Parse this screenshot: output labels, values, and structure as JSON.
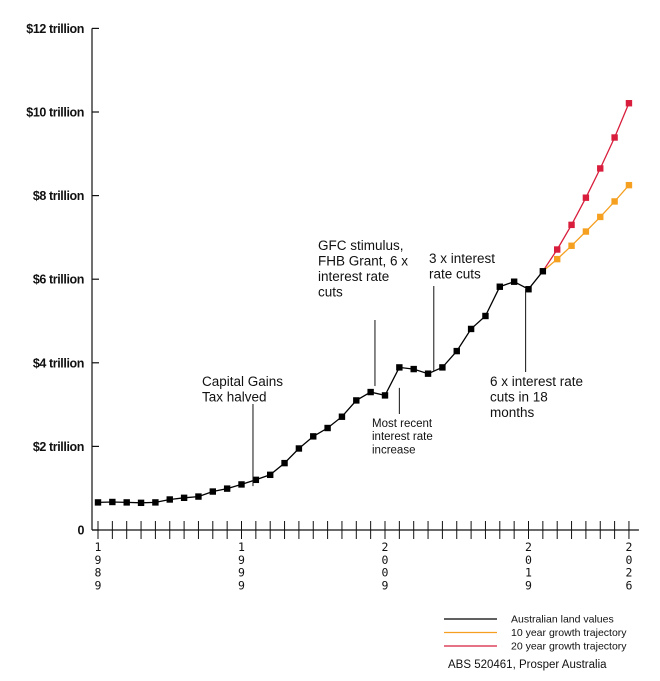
{
  "chart_data": {
    "type": "line",
    "title": "",
    "xlabel": "",
    "ylabel": "",
    "ylim": [
      0,
      12
    ],
    "y_ticks": [
      {
        "value": 0,
        "label": "0"
      },
      {
        "value": 2,
        "label": "$2 trillion"
      },
      {
        "value": 4,
        "label": "$4 trillion"
      },
      {
        "value": 6,
        "label": "$6 trillion"
      },
      {
        "value": 8,
        "label": "$8 trillion"
      },
      {
        "value": 10,
        "label": "$10 trillion"
      },
      {
        "value": 12,
        "label": "$12 trillion"
      }
    ],
    "x_range": [
      1989,
      2026
    ],
    "x_labels": [
      {
        "year": 1989,
        "label": "1989"
      },
      {
        "year": 1999,
        "label": "1999"
      },
      {
        "year": 2009,
        "label": "2009"
      },
      {
        "year": 2019,
        "label": "2019"
      },
      {
        "year": 2026,
        "label": "2026"
      }
    ],
    "grid": false,
    "legend_position": "bottom-right",
    "series": [
      {
        "name": "Australian land values",
        "color": "#000000",
        "x": [
          1989,
          1990,
          1991,
          1992,
          1993,
          1994,
          1995,
          1996,
          1997,
          1998,
          1999,
          2000,
          2001,
          2002,
          2003,
          2004,
          2005,
          2006,
          2007,
          2008,
          2009,
          2010,
          2011,
          2012,
          2013,
          2014,
          2015,
          2016,
          2017,
          2018,
          2019,
          2020
        ],
        "values": [
          0.66,
          0.67,
          0.66,
          0.65,
          0.66,
          0.73,
          0.77,
          0.8,
          0.92,
          0.99,
          1.09,
          1.2,
          1.32,
          1.6,
          1.95,
          2.24,
          2.44,
          2.71,
          3.1,
          3.3,
          3.22,
          3.89,
          3.85,
          3.74,
          3.89,
          4.28,
          4.81,
          5.12,
          5.82,
          5.94,
          5.76,
          6.19
        ]
      },
      {
        "name": "10 year growth trajectory",
        "color": "#f5a020",
        "x": [
          2020,
          2021,
          2022,
          2023,
          2024,
          2025,
          2026
        ],
        "values": [
          6.19,
          6.48,
          6.8,
          7.14,
          7.49,
          7.86,
          8.25
        ]
      },
      {
        "name": "20 year growth trajectory",
        "color": "#d81e3c",
        "x": [
          2020,
          2021,
          2022,
          2023,
          2024,
          2025,
          2026
        ],
        "values": [
          6.19,
          6.71,
          7.3,
          7.95,
          8.65,
          9.39,
          10.21
        ]
      }
    ],
    "annotations": [
      {
        "lines": [
          "Capital Gains",
          "Tax halved"
        ],
        "year": 1999.8,
        "value": 1.05
      },
      {
        "lines": [
          "GFC stimulus,",
          "FHB Grant, 6 x",
          "interest rate",
          "cuts"
        ],
        "year": 2008.3,
        "value": 3.3
      },
      {
        "lines": [
          "Most recent",
          "interest rate",
          "increase"
        ],
        "year": 2010.0,
        "value": 3.4
      },
      {
        "lines": [
          "3 x interest",
          "rate cuts"
        ],
        "year": 2012.4,
        "value": 3.8
      },
      {
        "lines": [
          "6 x interest rate",
          "cuts in 18",
          "months"
        ],
        "year": 2018.8,
        "value": 5.76
      }
    ],
    "source": "ABS 520461, Prosper Australia"
  }
}
